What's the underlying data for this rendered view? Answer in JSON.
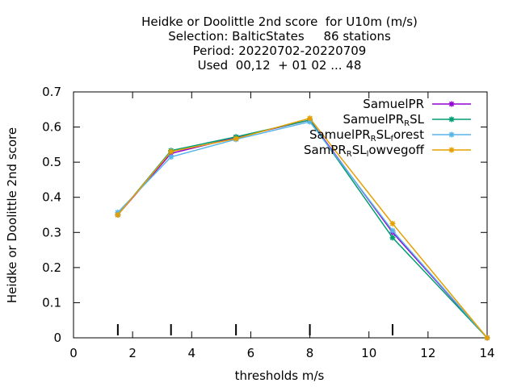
{
  "chart_data": {
    "type": "line",
    "title_lines": [
      "Heidke or Doolittle 2nd score  for U10m (m/s)",
      "Selection: BalticStates     86 stations",
      "Period: 20220702-20220709",
      "Used  00,12  + 01 02 ... 48"
    ],
    "xlabel": "thresholds m/s",
    "ylabel": "Heidke or Doolittle 2nd score",
    "xlim": [
      0,
      14
    ],
    "ylim": [
      0,
      0.7
    ],
    "xticks": [
      "0",
      "2",
      "4",
      "6",
      "8",
      "10",
      "12",
      "14"
    ],
    "yticks": [
      "0",
      "0.1",
      "0.2",
      "0.3",
      "0.4",
      "0.5",
      "0.6",
      "0.7"
    ],
    "grid": false,
    "legend_position": "top-right",
    "threshold_markers": [
      1.5,
      3.3,
      5.5,
      8.0,
      10.8
    ],
    "series": [
      {
        "name": "SamuelPR",
        "legend_parts": [
          [
            "SamuelPR",
            ""
          ]
        ],
        "color": "#9400d3",
        "x": [
          1.5,
          3.3,
          5.5,
          8.0,
          10.8,
          14.0
        ],
        "y": [
          0.35,
          0.525,
          0.57,
          0.62,
          0.3,
          0.0
        ]
      },
      {
        "name": "SamuelPR_R SL",
        "legend_parts": [
          [
            "SamuelPR",
            ""
          ],
          [
            "R",
            "sub"
          ],
          [
            "SL",
            ""
          ]
        ],
        "color": "#009e73",
        "x": [
          1.5,
          3.3,
          5.5,
          8.0,
          10.8,
          14.0
        ],
        "y": [
          0.35,
          0.533,
          0.572,
          0.62,
          0.285,
          0.0
        ]
      },
      {
        "name": "SamuelPR_R SL_f orest",
        "legend_parts": [
          [
            "SamuelPR",
            ""
          ],
          [
            "R",
            "sub"
          ],
          [
            "SL",
            ""
          ],
          [
            "f",
            "sub"
          ],
          [
            "orest",
            ""
          ]
        ],
        "color": "#56b4e9",
        "x": [
          1.5,
          3.3,
          5.5,
          8.0,
          10.8,
          14.0
        ],
        "y": [
          0.357,
          0.515,
          0.565,
          0.615,
          0.305,
          0.0
        ]
      },
      {
        "name": "SamPR_R SL_l owvegoff",
        "legend_parts": [
          [
            "SamPR",
            ""
          ],
          [
            "R",
            "sub"
          ],
          [
            "SL",
            ""
          ],
          [
            "l",
            "sub"
          ],
          [
            "owvegoff",
            ""
          ]
        ],
        "color": "#e69f00",
        "x": [
          1.5,
          3.3,
          5.5,
          8.0,
          10.8,
          14.0
        ],
        "y": [
          0.35,
          0.53,
          0.567,
          0.625,
          0.325,
          0.0
        ]
      }
    ]
  }
}
